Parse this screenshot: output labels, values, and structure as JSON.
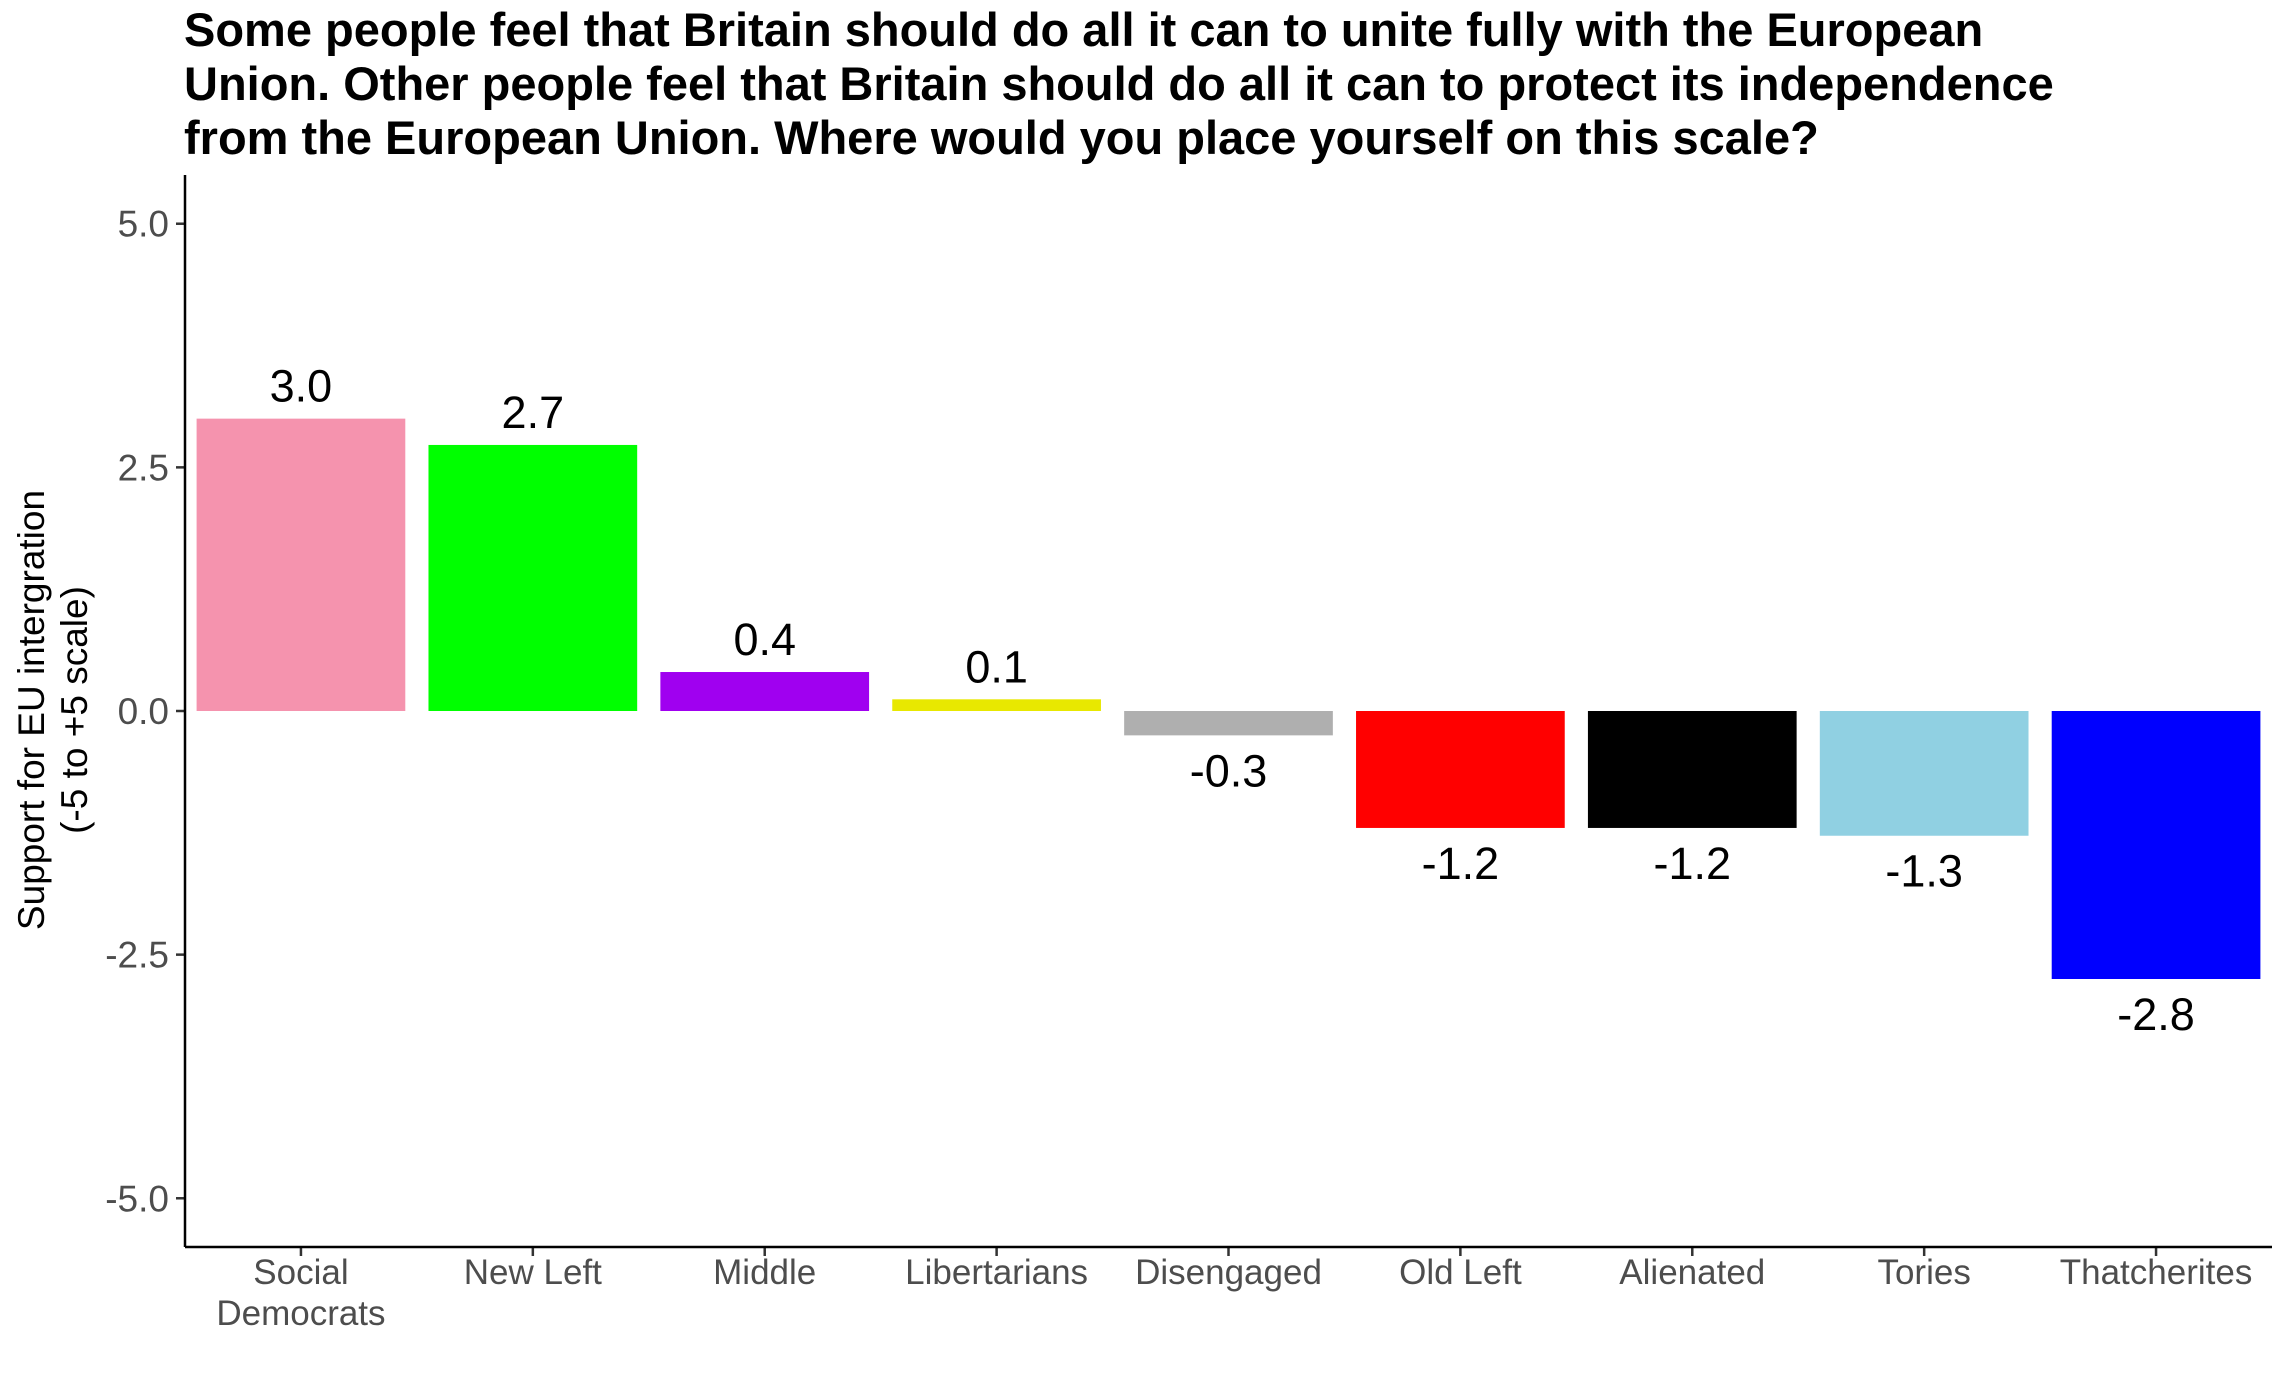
{
  "chart_data": {
    "type": "bar",
    "title_lines": [
      "Some people feel that Britain should do all it can to unite fully with the European",
      "Union. Other people feel that Britain should do all it can to protect its independence",
      "from the European Union. Where would you place yourself on this scale?"
    ],
    "xlabel": "",
    "ylabel_lines": [
      "Support for EU intergration",
      "(-5 to +5 scale)"
    ],
    "ylim": [
      -5.5,
      5.5
    ],
    "yticks": [
      5.0,
      2.5,
      0.0,
      -2.5,
      -5.0
    ],
    "ytick_labels": [
      "5.0",
      "2.5",
      "0.0",
      "-2.5",
      "-5.0"
    ],
    "grid": false,
    "categories": [
      {
        "lines": [
          "Social",
          "Democrats"
        ]
      },
      {
        "lines": [
          "New Left"
        ]
      },
      {
        "lines": [
          "Middle"
        ]
      },
      {
        "lines": [
          "Libertarians"
        ]
      },
      {
        "lines": [
          "Disengaged"
        ]
      },
      {
        "lines": [
          "Old Left"
        ]
      },
      {
        "lines": [
          "Alienated"
        ]
      },
      {
        "lines": [
          "Tories"
        ]
      },
      {
        "lines": [
          "Thatcherites"
        ]
      }
    ],
    "values": [
      3.0,
      2.73,
      0.4,
      0.12,
      -0.25,
      -1.2,
      -1.2,
      -1.28,
      -2.75
    ],
    "value_labels": [
      "3.0",
      "2.7",
      "0.4",
      "0.1",
      "-0.3",
      "-1.2",
      "-1.2",
      "-1.3",
      "-2.8"
    ],
    "colors": [
      "#F593AE",
      "#00FF00",
      "#A000F0",
      "#E8E800",
      "#AFAFAF",
      "#FF0000",
      "#000000",
      "#90D0E2",
      "#0000FF"
    ]
  }
}
